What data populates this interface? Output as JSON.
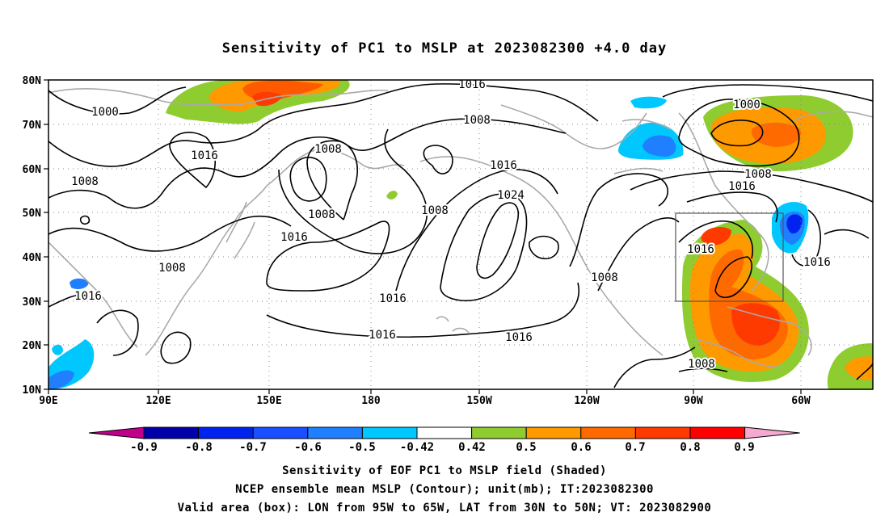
{
  "title": "Sensitivity of PC1 to MSLP at 2023082300 +4.0 day",
  "lat_labels": [
    "80N",
    "70N",
    "60N",
    "50N",
    "40N",
    "30N",
    "20N",
    "10N"
  ],
  "lon_labels": [
    "90E",
    "120E",
    "150E",
    "180",
    "150W",
    "120W",
    "90W",
    "60W"
  ],
  "contour_labels": [
    "1000",
    "1008",
    "1016",
    "1024"
  ],
  "colorbar": {
    "ticks": [
      "-0.9",
      "-0.8",
      "-0.7",
      "-0.6",
      "-0.5",
      "-0.42",
      "0.42",
      "0.5",
      "0.6",
      "0.7",
      "0.8",
      "0.9"
    ],
    "colors": [
      "#c0008a",
      "#0000aa",
      "#0022ee",
      "#1a4fff",
      "#1f7fff",
      "#00c8ff",
      "#ffffff",
      "#8fcc30",
      "#ff9900",
      "#ff6a00",
      "#ff3a00",
      "#ff0000",
      "#f5a8d0"
    ]
  },
  "box": {
    "lon_from": "95W",
    "lon_to": "65W",
    "lat_from": "30N",
    "lat_to": "50N"
  },
  "captions": [
    "Sensitivity of EOF PC1 to MSLP field (Shaded)",
    "NCEP ensemble mean MSLP (Contour); unit(mb); IT:2023082300",
    "Valid area (box): LON from 95W to 65W, LAT from 30N to 50N; VT: 2023082900"
  ]
}
